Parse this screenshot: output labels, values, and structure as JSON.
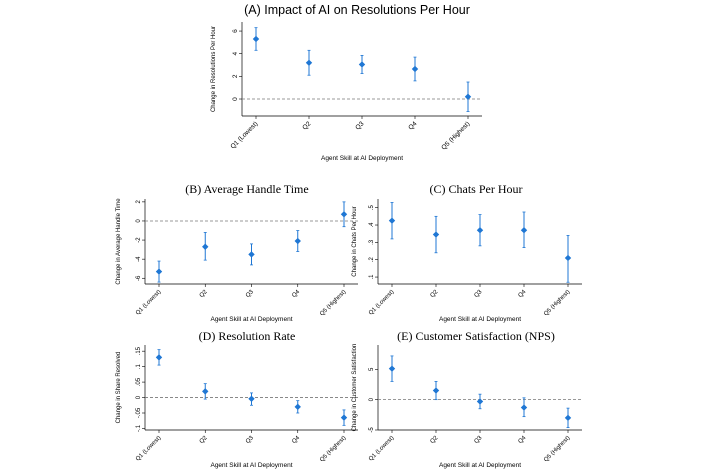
{
  "colors": {
    "marker": "#1f77d4",
    "axis": "#000000",
    "zero_line": "#777777"
  },
  "chart_data": [
    {
      "id": "A",
      "type": "scatter",
      "title": "(A) Impact of AI on Resolutions Per Hour",
      "title_font": "sans",
      "xlabel": "Agent Skill at AI Deployment",
      "ylabel": "Change in Resolutions Per Hour",
      "categories": [
        "Q1 (Lowest)",
        "Q2",
        "Q3",
        "Q4",
        "Q5 (Highest)"
      ],
      "values": [
        5.3,
        3.2,
        3.05,
        2.65,
        0.2
      ],
      "ci_low": [
        4.3,
        2.1,
        2.25,
        1.6,
        -1.1
      ],
      "ci_high": [
        6.3,
        4.3,
        3.85,
        3.7,
        1.5
      ],
      "ylim": [
        -1.5,
        6.8
      ],
      "yticks": [
        0,
        2,
        4,
        6
      ],
      "ytick_labels": [
        "0",
        "2",
        "4",
        "6"
      ],
      "zero_line": 0
    },
    {
      "id": "B",
      "type": "scatter",
      "title": "(B) Average Handle Time",
      "title_font": "serif",
      "xlabel": "Agent Skill at AI Deployment",
      "ylabel": "Change in Average Handle Time",
      "categories": [
        "Q1 (Lowest)",
        "Q2",
        "Q3",
        "Q4",
        "Q5 (Highest)"
      ],
      "values": [
        -5.3,
        -2.7,
        -3.5,
        -2.1,
        0.7
      ],
      "ci_low": [
        -6.4,
        -4.1,
        -4.6,
        -3.2,
        -0.6
      ],
      "ci_high": [
        -4.2,
        -1.2,
        -2.4,
        -1.0,
        2.0
      ],
      "ylim": [
        -6.6,
        2.3
      ],
      "yticks": [
        2,
        0,
        -2,
        -4,
        -6
      ],
      "ytick_labels": [
        "2",
        "0",
        "-2",
        "-4",
        "-6"
      ],
      "zero_line": 0
    },
    {
      "id": "C",
      "type": "scatter",
      "title": "(C) Chats Per Hour",
      "title_font": "serif",
      "xlabel": "Agent Skill at AI Deployment",
      "ylabel": "Change in Chats Per Hour",
      "categories": [
        "Q1 (Lowest)",
        "Q2",
        "Q3",
        "Q4",
        "Q5 (Highest)"
      ],
      "values": [
        0.425,
        0.345,
        0.37,
        0.37,
        0.21
      ],
      "ci_low": [
        0.32,
        0.24,
        0.28,
        0.27,
        0.07
      ],
      "ci_high": [
        0.53,
        0.45,
        0.46,
        0.475,
        0.34
      ],
      "ylim": [
        0.06,
        0.55
      ],
      "yticks": [
        0.1,
        0.2,
        0.3,
        0.4,
        0.5
      ],
      "ytick_labels": [
        ".1",
        ".2",
        ".3",
        ".4",
        ".5"
      ],
      "zero_line": null
    },
    {
      "id": "D",
      "type": "scatter",
      "title": "(D) Resolution Rate",
      "title_font": "serif",
      "xlabel": "Agent Skill at AI Deployment",
      "ylabel": "Change in Share Resolved",
      "categories": [
        "Q1 (Lowest)",
        "Q2",
        "Q3",
        "Q4",
        "Q5 (Highest)"
      ],
      "values": [
        0.13,
        0.02,
        -0.004,
        -0.03,
        -0.065
      ],
      "ci_low": [
        0.105,
        -0.005,
        -0.025,
        -0.05,
        -0.09
      ],
      "ci_high": [
        0.155,
        0.045,
        0.015,
        -0.01,
        -0.04
      ],
      "ylim": [
        -0.105,
        0.17
      ],
      "yticks": [
        0.15,
        0.1,
        0.05,
        0,
        -0.05,
        -0.1
      ],
      "ytick_labels": [
        ".15",
        ".1",
        ".05",
        "0",
        "-.05",
        "-.1"
      ],
      "zero_line": 0
    },
    {
      "id": "E",
      "type": "scatter",
      "title": "(E) Customer Satisfaction (NPS)",
      "title_font": "serif",
      "xlabel": "Agent Skill at AI Deployment",
      "ylabel": "Change in Customer Satisfaction",
      "categories": [
        "Q1 (Lowest)",
        "Q2",
        "Q3",
        "Q4",
        "Q5 (Highest)"
      ],
      "values": [
        5.1,
        1.5,
        -0.3,
        -1.3,
        -3.0
      ],
      "ci_low": [
        3.0,
        0.0,
        -1.5,
        -2.8,
        -4.6
      ],
      "ci_high": [
        7.2,
        3.0,
        0.9,
        0.3,
        -1.4
      ],
      "ylim": [
        -5.0,
        9.0
      ],
      "yticks": [
        5,
        0,
        -5
      ],
      "ytick_labels": [
        "5",
        "0",
        "-5"
      ],
      "zero_line": 0
    }
  ]
}
